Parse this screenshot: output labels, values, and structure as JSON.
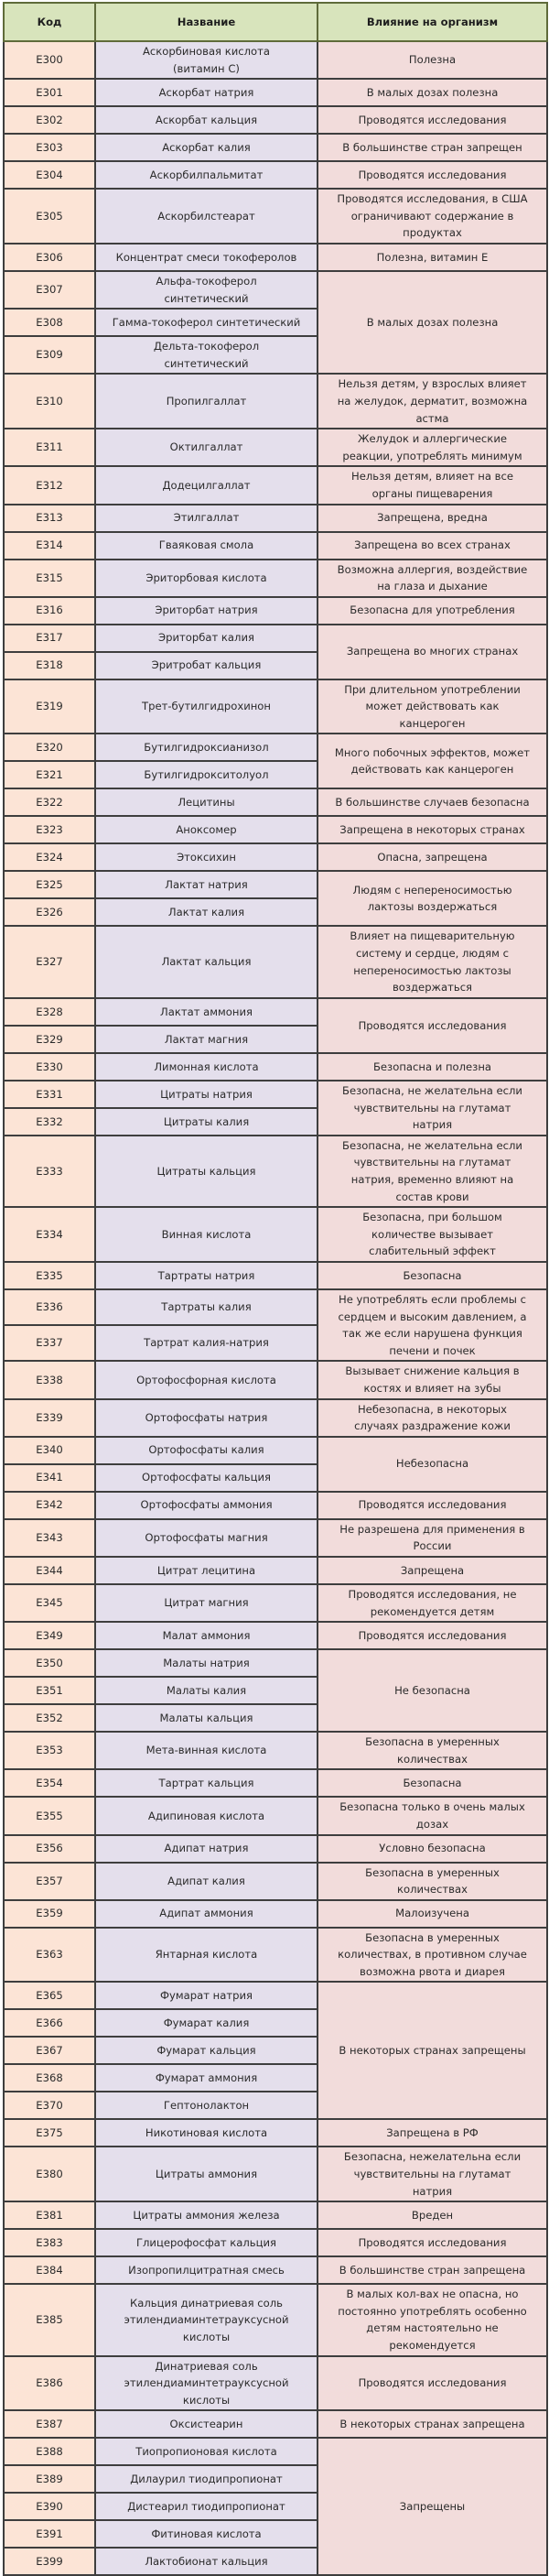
{
  "headers": {
    "code": "Код",
    "name": "Название",
    "effect": "Влияние на организм"
  },
  "colors": {
    "header": "#d8e4bc",
    "code": "#fce4d6",
    "name": "#e4dfec",
    "effect": "#f2dcdb"
  },
  "rows": [
    {
      "code": "E300",
      "name": "Аскорбиновая кислота\n(витамин С)",
      "effect": "Полезна",
      "span": 1
    },
    {
      "code": "E301",
      "name": "Аскорбат натрия",
      "effect": "В малых дозах полезна",
      "span": 1
    },
    {
      "code": "E302",
      "name": "Аскорбат кальция",
      "effect": "Проводятся исследования",
      "span": 1
    },
    {
      "code": "E303",
      "name": "Аскорбат калия",
      "effect": "В большинстве стран запрещен",
      "span": 1
    },
    {
      "code": "E304",
      "name": "Аскорбилпальмитат",
      "effect": "Проводятся исследования",
      "span": 1
    },
    {
      "code": "E305",
      "name": "Аскорбилстеарат",
      "effect": "Проводятся исследования, в США\nограничивают содержание в\nпродуктах",
      "span": 1
    },
    {
      "code": "E306",
      "name": "Концентрат смеси токоферолов",
      "effect": "Полезна, витамин Е",
      "span": 1
    },
    {
      "code": "E307",
      "name": "Альфа-токоферол\nсинтетический",
      "effect": "В малых дозах полезна",
      "span": 3
    },
    {
      "code": "E308",
      "name": "Гамма-токоферол синтетический"
    },
    {
      "code": "E309",
      "name": "Дельта-токоферол\nсинтетический"
    },
    {
      "code": "E310",
      "name": "Пропилгаллат",
      "effect": "Нельзя детям, у взрослых влияет\nна желудок, дерматит, возможна\nастма",
      "span": 1
    },
    {
      "code": "E311",
      "name": "Октилгаллат",
      "effect": "Желудок и аллергические\nреакции, употреблять минимум",
      "span": 1
    },
    {
      "code": "E312",
      "name": "Додецилгаллат",
      "effect": "Нельзя детям, влияет на все\nорганы пищеварения",
      "span": 1
    },
    {
      "code": "E313",
      "name": "Этилгаллат",
      "effect": "Запрещена, вредна",
      "span": 1
    },
    {
      "code": "E314",
      "name": "Гваяковая смола",
      "effect": "Запрещена во всех странах",
      "span": 1
    },
    {
      "code": "E315",
      "name": "Эриторбовая кислота",
      "effect": "Возможна аллергия, воздействие\nна глаза и дыхание",
      "span": 1
    },
    {
      "code": "E316",
      "name": "Эриторбат натрия",
      "effect": "Безопасна для употребления",
      "span": 1
    },
    {
      "code": "E317",
      "name": "Эриторбат калия",
      "effect": "Запрещена во многих странах",
      "span": 2
    },
    {
      "code": "E318",
      "name": "Эритробат кальция"
    },
    {
      "code": "E319",
      "name": "Трет-бутилгидрохинон",
      "effect": "При длительном употреблении\nможет действовать как\nканцероген",
      "span": 1
    },
    {
      "code": "E320",
      "name": "Бутилгидроксианизол",
      "effect": "Много побочных эффектов, может\nдействовать как канцероген",
      "span": 2
    },
    {
      "code": "E321",
      "name": "Бутилгидрокситолуол"
    },
    {
      "code": "E322",
      "name": "Лецитины",
      "effect": "В большинстве случаев безопасна",
      "span": 1
    },
    {
      "code": "E323",
      "name": "Аноксомер",
      "effect": "Запрещена в некоторых странах",
      "span": 1
    },
    {
      "code": "E324",
      "name": "Этоксихин",
      "effect": "Опасна, запрещена",
      "span": 1
    },
    {
      "code": "E325",
      "name": "Лактат натрия",
      "effect": "Людям с непереносимостью\nлактозы воздержаться",
      "span": 2
    },
    {
      "code": "E326",
      "name": "Лактат калия"
    },
    {
      "code": "E327",
      "name": "Лактат кальция",
      "effect": "Влияет на пищеварительную\nсистему и сердце, людям с\nнепереносимостью лактозы\nвоздержаться",
      "span": 1
    },
    {
      "code": "E328",
      "name": "Лактат аммония",
      "effect": "Проводятся исследования",
      "span": 2
    },
    {
      "code": "E329",
      "name": "Лактат магния"
    },
    {
      "code": "E330",
      "name": "Лимонная кислота",
      "effect": "Безопасна и полезна",
      "span": 1
    },
    {
      "code": "E331",
      "name": "Цитраты натрия",
      "effect": "Безопасна, не желательна если\nчувствительны на глутамат\nнатрия",
      "span": 2
    },
    {
      "code": "E332",
      "name": "Цитраты калия"
    },
    {
      "code": "E333",
      "name": "Цитраты кальция",
      "effect": "Безопасна, не желательна если\nчувствительны на глутамат\nнатрия, временно влияют на\nсостав крови",
      "span": 1
    },
    {
      "code": "E334",
      "name": "Винная кислота",
      "effect": "Безопасна, при большом\nколичестве вызывает\nслабительный эффект",
      "span": 1
    },
    {
      "code": "E335",
      "name": "Тартраты натрия",
      "effect": "Безопасна",
      "span": 1
    },
    {
      "code": "E336",
      "name": "Тартраты калия",
      "effect": "Не употреблять если проблемы с\nсердцем и высоким давлением, а\nтак же если нарушена функция\nпечени и почек",
      "span": 2
    },
    {
      "code": "E337",
      "name": "Тартрат калия-натрия"
    },
    {
      "code": "E338",
      "name": "Ортофосфорная кислота",
      "effect": "Вызывает снижение кальция в\nкостях и влияет на зубы",
      "span": 1
    },
    {
      "code": "E339",
      "name": "Ортофосфаты натрия",
      "effect": "Небезопасна, в некоторых\nслучаях раздражение кожи",
      "span": 1
    },
    {
      "code": "E340",
      "name": "Ортофосфаты калия",
      "effect": "Небезопасна",
      "span": 2
    },
    {
      "code": "E341",
      "name": "Ортофосфаты кальция"
    },
    {
      "code": "E342",
      "name": "Ортофосфаты аммония",
      "effect": "Проводятся исследования",
      "span": 1
    },
    {
      "code": "E343",
      "name": "Ортофосфаты магния",
      "effect": "Не разрешена для применения в\nРоссии",
      "span": 1
    },
    {
      "code": "E344",
      "name": "Цитрат лецитина",
      "effect": "Запрещена",
      "span": 1
    },
    {
      "code": "E345",
      "name": "Цитрат магния",
      "effect": "Проводятся исследования, не\nрекомендуется детям",
      "span": 1
    },
    {
      "code": "E349",
      "name": "Малат аммония",
      "effect": "Проводятся исследования",
      "span": 1
    },
    {
      "code": "E350",
      "name": "Малаты натрия",
      "effect": "Не безопасна",
      "span": 3
    },
    {
      "code": "E351",
      "name": "Малаты калия"
    },
    {
      "code": "E352",
      "name": "Малаты кальция"
    },
    {
      "code": "E353",
      "name": "Мета-винная кислота",
      "effect": "Безопасна в умеренных\nколичествах",
      "span": 1
    },
    {
      "code": "E354",
      "name": "Тартрат кальция",
      "effect": "Безопасна",
      "span": 1
    },
    {
      "code": "E355",
      "name": "Адипиновая кислота",
      "effect": "Безопасна только в очень малых\nдозах",
      "span": 1
    },
    {
      "code": "E356",
      "name": "Адипат натрия",
      "effect": "Условно безопасна",
      "span": 1
    },
    {
      "code": "E357",
      "name": "Адипат калия",
      "effect": "Безопасна в умеренных\nколичествах",
      "span": 1
    },
    {
      "code": "E359",
      "name": "Адипат аммония",
      "effect": "Малоизучена",
      "span": 1
    },
    {
      "code": "E363",
      "name": "Янтарная кислота",
      "effect": "Безопасна в умеренных\nколичествах, в противном случае\nвозможна рвота и диарея",
      "span": 1
    },
    {
      "code": "E365",
      "name": "Фумарат натрия",
      "effect": "В некоторых странах запрещены",
      "span": 5
    },
    {
      "code": "E366",
      "name": "Фумарат калия"
    },
    {
      "code": "E367",
      "name": "Фумарат кальция"
    },
    {
      "code": "E368",
      "name": "Фумарат аммония"
    },
    {
      "code": "E370",
      "name": "Гептонолактон"
    },
    {
      "code": "E375",
      "name": "Никотиновая кислота",
      "effect": "Запрещена в РФ",
      "span": 1
    },
    {
      "code": "E380",
      "name": "Цитраты аммония",
      "effect": "Безопасна, нежелательна если\nчувствительны на глутамат\nнатрия",
      "span": 1
    },
    {
      "code": "E381",
      "name": "Цитраты аммония железа",
      "effect": "Вреден",
      "span": 1
    },
    {
      "code": "E383",
      "name": "Глицерофосфат кальция",
      "effect": "Проводятся исследования",
      "span": 1
    },
    {
      "code": "E384",
      "name": "Изопропилцитратная смесь",
      "effect": "В большинстве стран запрещена",
      "span": 1
    },
    {
      "code": "E385",
      "name": "Кальция динатриевая соль\nэтилендиаминтетрауксусной\nкислоты",
      "effect": "В малых кол-вах не опасна, но\nпостоянно употреблять особенно\nдетям настоятельно не\nрекомендуется",
      "span": 1
    },
    {
      "code": "E386",
      "name": "Динатриевая соль\nэтилендиаминтетрауксусной\nкислоты",
      "effect": "Проводятся исследования",
      "span": 1
    },
    {
      "code": "E387",
      "name": "Оксистеарин",
      "effect": "В некоторых странах запрещена",
      "span": 1
    },
    {
      "code": "E388",
      "name": "Тиопропионовая кислота",
      "effect": "Запрещены",
      "span": 5
    },
    {
      "code": "E389",
      "name": "Дилаурил тиодипропионат"
    },
    {
      "code": "E390",
      "name": "Дистеарил тиодипропионат"
    },
    {
      "code": "E391",
      "name": "Фитиновая кислота"
    },
    {
      "code": "E399",
      "name": "Лактобионат кальция"
    }
  ]
}
